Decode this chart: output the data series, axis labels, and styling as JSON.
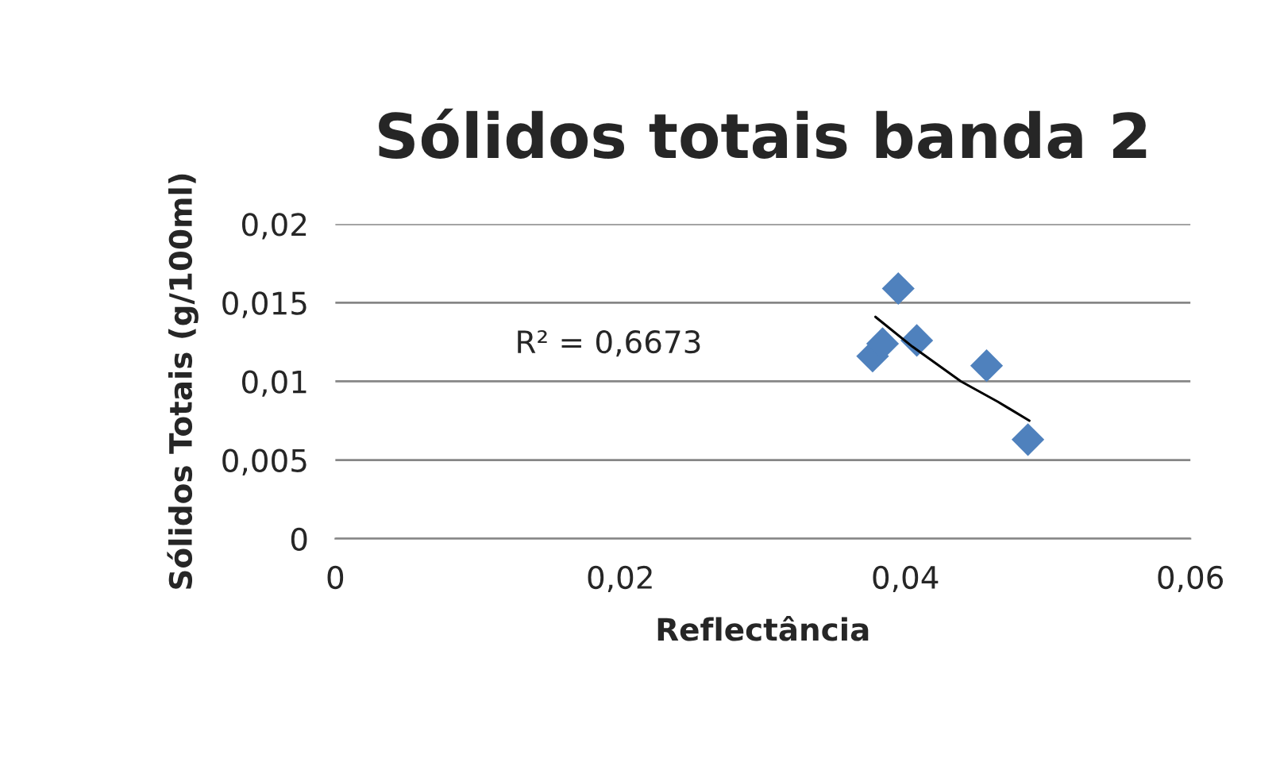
{
  "chart_data": {
    "type": "scatter",
    "title": "Sólidos totais banda 2",
    "xlabel": "Reflectância",
    "ylabel": "Sólidos Totais (g/100ml)",
    "xlim": [
      0,
      0.06
    ],
    "xticks": [
      {
        "value": 0,
        "label": "0"
      },
      {
        "value": 0.02,
        "label": "0,02"
      },
      {
        "value": 0.04,
        "label": "0,04"
      },
      {
        "value": 0.06,
        "label": "0,06"
      }
    ],
    "ylim": [
      0,
      0.02
    ],
    "yticks": [
      {
        "value": 0,
        "label": "0"
      },
      {
        "value": 0.005,
        "label": "0,005"
      },
      {
        "value": 0.01,
        "label": "0,01"
      },
      {
        "value": 0.015,
        "label": "0,015"
      },
      {
        "value": 0.02,
        "label": "0,02"
      }
    ],
    "grid": "y",
    "legend": false,
    "series": [
      {
        "marker": "diamond",
        "color": "#4f81bd",
        "x": [
          0.0377,
          0.0384,
          0.0395,
          0.0408,
          0.0457,
          0.0486
        ],
        "values": [
          0.0116,
          0.0124,
          0.0159,
          0.0126,
          0.011,
          0.0063
        ]
      },
      {
        "type": "line",
        "marker": "none",
        "color": "#000000",
        "x": [
          0.0379,
          0.0405,
          0.0439,
          0.0465,
          0.0487
        ],
        "values": [
          0.0141,
          0.0122,
          0.01,
          0.0087,
          0.0075
        ]
      }
    ],
    "annotations": [
      "R² = 0,6673"
    ]
  }
}
